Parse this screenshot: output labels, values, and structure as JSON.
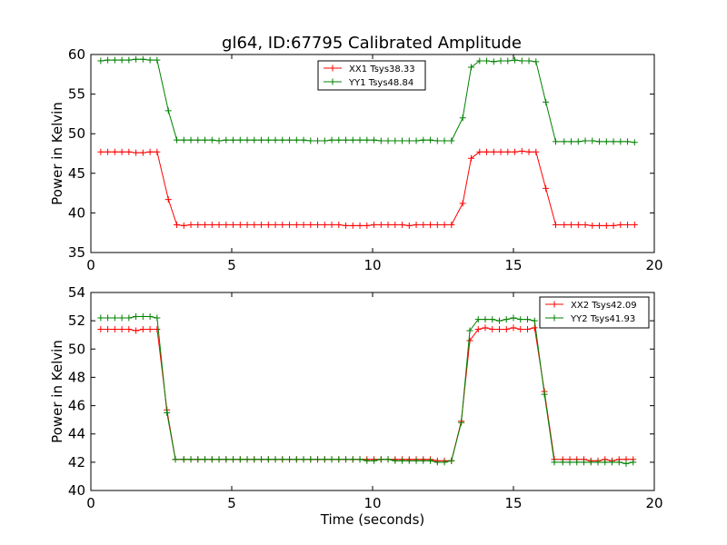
{
  "figure": {
    "title": "gl64, ID:67795 Calibrated Amplitude"
  },
  "chart_data": [
    {
      "type": "line",
      "ylabel": "Power in Kelvin",
      "xlabel": "",
      "xlim": [
        0,
        20
      ],
      "ylim": [
        35,
        60
      ],
      "xticks": [
        0,
        5,
        10,
        15,
        20
      ],
      "yticks": [
        35,
        40,
        45,
        50,
        55,
        60
      ],
      "legend_position": "top-center",
      "x": [
        0.35,
        0.6,
        0.85,
        1.1,
        1.35,
        1.6,
        1.85,
        2.1,
        2.35,
        2.75,
        3.05,
        3.3,
        3.55,
        3.8,
        4.05,
        4.3,
        4.55,
        4.8,
        5.05,
        5.3,
        5.55,
        5.8,
        6.05,
        6.3,
        6.55,
        6.8,
        7.05,
        7.3,
        7.55,
        7.8,
        8.05,
        8.3,
        8.55,
        8.8,
        9.05,
        9.3,
        9.55,
        9.8,
        10.05,
        10.3,
        10.55,
        10.8,
        11.05,
        11.3,
        11.55,
        11.8,
        12.05,
        12.3,
        12.55,
        12.8,
        13.2,
        13.5,
        13.8,
        14.05,
        14.3,
        14.55,
        14.8,
        15.05,
        15.3,
        15.55,
        15.8,
        16.15,
        16.5,
        16.8,
        17.05,
        17.3,
        17.55,
        17.8,
        18.05,
        18.3,
        18.55,
        18.8,
        19.05,
        19.3
      ],
      "series": [
        {
          "name": "XX1 Tsys38.33",
          "color": "#ff0000",
          "values": [
            47.7,
            47.7,
            47.7,
            47.7,
            47.7,
            47.6,
            47.6,
            47.7,
            47.7,
            41.7,
            38.5,
            38.4,
            38.5,
            38.5,
            38.5,
            38.5,
            38.5,
            38.5,
            38.5,
            38.5,
            38.5,
            38.5,
            38.5,
            38.5,
            38.5,
            38.5,
            38.5,
            38.5,
            38.5,
            38.5,
            38.5,
            38.5,
            38.5,
            38.5,
            38.4,
            38.4,
            38.4,
            38.4,
            38.5,
            38.5,
            38.5,
            38.5,
            38.5,
            38.4,
            38.5,
            38.5,
            38.5,
            38.5,
            38.5,
            38.5,
            41.2,
            46.9,
            47.7,
            47.7,
            47.7,
            47.7,
            47.7,
            47.7,
            47.8,
            47.7,
            47.7,
            43.1,
            38.5,
            38.5,
            38.5,
            38.5,
            38.5,
            38.4,
            38.4,
            38.4,
            38.4,
            38.5,
            38.5,
            38.5
          ]
        },
        {
          "name": "YY1 Tsys48.84",
          "color": "#008000",
          "values": [
            59.2,
            59.3,
            59.3,
            59.3,
            59.3,
            59.4,
            59.4,
            59.3,
            59.3,
            52.9,
            49.2,
            49.2,
            49.2,
            49.2,
            49.2,
            49.2,
            49.1,
            49.2,
            49.2,
            49.2,
            49.2,
            49.2,
            49.2,
            49.2,
            49.2,
            49.2,
            49.2,
            49.2,
            49.2,
            49.1,
            49.1,
            49.1,
            49.2,
            49.2,
            49.2,
            49.2,
            49.2,
            49.2,
            49.2,
            49.1,
            49.1,
            49.1,
            49.1,
            49.1,
            49.1,
            49.2,
            49.2,
            49.1,
            49.1,
            49.1,
            52.0,
            58.4,
            59.2,
            59.2,
            59.1,
            59.2,
            59.2,
            59.3,
            59.2,
            59.2,
            59.1,
            54.0,
            49.0,
            49.0,
            49.0,
            49.0,
            49.1,
            49.1,
            49.0,
            49.0,
            49.0,
            49.0,
            49.0,
            48.9
          ]
        }
      ]
    },
    {
      "type": "line",
      "ylabel": "Power in Kelvin",
      "xlabel": "Time (seconds)",
      "xlim": [
        0,
        20
      ],
      "ylim": [
        40,
        54
      ],
      "xticks": [
        0,
        5,
        10,
        15,
        20
      ],
      "yticks": [
        40,
        42,
        44,
        46,
        48,
        50,
        52,
        54
      ],
      "legend_position": "top-right",
      "x": [
        0.35,
        0.6,
        0.85,
        1.1,
        1.35,
        1.6,
        1.85,
        2.1,
        2.35,
        2.7,
        3.0,
        3.3,
        3.55,
        3.8,
        4.05,
        4.3,
        4.55,
        4.8,
        5.05,
        5.3,
        5.55,
        5.8,
        6.05,
        6.3,
        6.55,
        6.8,
        7.05,
        7.3,
        7.55,
        7.8,
        8.05,
        8.3,
        8.55,
        8.8,
        9.05,
        9.3,
        9.55,
        9.8,
        10.05,
        10.3,
        10.55,
        10.8,
        11.05,
        11.3,
        11.55,
        11.8,
        12.05,
        12.3,
        12.55,
        12.8,
        13.15,
        13.45,
        13.75,
        14.0,
        14.25,
        14.5,
        14.75,
        15.0,
        15.25,
        15.5,
        15.75,
        16.1,
        16.45,
        16.75,
        17.0,
        17.25,
        17.5,
        17.75,
        18.0,
        18.25,
        18.5,
        18.75,
        19.0,
        19.25
      ],
      "series": [
        {
          "name": "XX2 Tsys42.09",
          "color": "#ff0000",
          "values": [
            51.4,
            51.4,
            51.4,
            51.4,
            51.4,
            51.3,
            51.4,
            51.4,
            51.4,
            45.7,
            42.2,
            42.2,
            42.2,
            42.2,
            42.2,
            42.2,
            42.2,
            42.2,
            42.2,
            42.2,
            42.2,
            42.2,
            42.2,
            42.2,
            42.2,
            42.2,
            42.2,
            42.2,
            42.2,
            42.2,
            42.2,
            42.2,
            42.2,
            42.2,
            42.2,
            42.2,
            42.2,
            42.2,
            42.2,
            42.2,
            42.2,
            42.2,
            42.2,
            42.2,
            42.2,
            42.2,
            42.2,
            42.1,
            42.1,
            42.1,
            44.9,
            50.6,
            51.4,
            51.5,
            51.4,
            51.4,
            51.4,
            51.5,
            51.4,
            51.4,
            51.5,
            47.0,
            42.2,
            42.2,
            42.2,
            42.2,
            42.2,
            42.1,
            42.1,
            42.2,
            42.1,
            42.2,
            42.2,
            42.2
          ]
        },
        {
          "name": "YY2 Tsys41.93",
          "color": "#008000",
          "values": [
            52.2,
            52.2,
            52.2,
            52.2,
            52.2,
            52.3,
            52.3,
            52.3,
            52.2,
            45.5,
            42.2,
            42.2,
            42.2,
            42.2,
            42.2,
            42.2,
            42.2,
            42.2,
            42.2,
            42.2,
            42.2,
            42.2,
            42.2,
            42.2,
            42.2,
            42.2,
            42.2,
            42.2,
            42.2,
            42.2,
            42.2,
            42.2,
            42.2,
            42.2,
            42.2,
            42.2,
            42.2,
            42.1,
            42.1,
            42.2,
            42.2,
            42.1,
            42.1,
            42.1,
            42.1,
            42.1,
            42.1,
            42.0,
            42.0,
            42.1,
            44.8,
            51.3,
            52.1,
            52.1,
            52.1,
            52.0,
            52.1,
            52.2,
            52.1,
            52.1,
            52.0,
            46.8,
            42.0,
            42.0,
            42.0,
            42.0,
            42.0,
            42.0,
            42.0,
            42.0,
            42.0,
            42.0,
            41.9,
            42.0
          ]
        }
      ]
    }
  ]
}
